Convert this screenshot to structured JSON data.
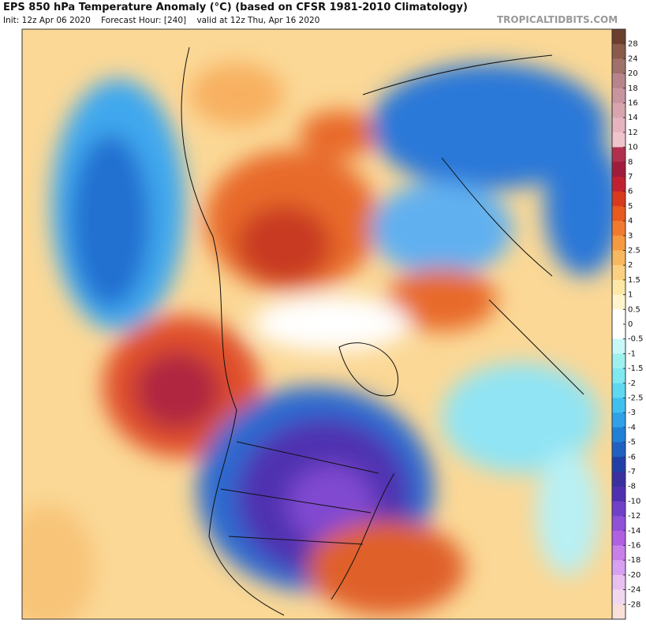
{
  "header": {
    "title": "EPS 850 hPa Temperature Anomaly (°C) (based on CFSR 1981-2010 Climatology)",
    "init": "Init: 12z Apr 06 2020",
    "forecast_hour": "Forecast Hour: [240]",
    "valid": "valid at 12z Thu, Apr 16 2020",
    "watermark": "TROPICALTIDBITS.COM"
  },
  "colorbar": {
    "ticks": [
      28,
      24,
      20,
      18,
      16,
      14,
      12,
      10,
      8,
      7,
      6,
      5,
      4,
      3,
      2.5,
      2,
      1.5,
      1,
      0.5,
      0,
      -0.5,
      -1,
      -1.5,
      -2,
      -2.5,
      -3,
      -4,
      -5,
      -6,
      -7,
      -8,
      -10,
      -12,
      -14,
      -16,
      -18,
      -20,
      -24,
      -28
    ],
    "colors": [
      "#6b3e2e",
      "#8a5a4a",
      "#a0706a",
      "#b8848c",
      "#c8949e",
      "#d8a4ae",
      "#e6b4be",
      "#f0c4cc",
      "#b0304e",
      "#a01c3c",
      "#c02030",
      "#d83a20",
      "#e85a20",
      "#f07a30",
      "#f59a40",
      "#f8b860",
      "#fbd080",
      "#fde8a8",
      "#fff4cc",
      "#ffffff",
      "#ffffff",
      "#c8f8f8",
      "#a0f0f0",
      "#80e8f0",
      "#60d8f0",
      "#40c0f0",
      "#30a0e8",
      "#2080d8",
      "#2060c0",
      "#2040a8",
      "#3a30a0",
      "#5030b0",
      "#7040c8",
      "#9050d8",
      "#b060e0",
      "#c880e8",
      "#d8a0f0",
      "#e8c0f0",
      "#f0d8f0",
      "#f8e0d8"
    ]
  }
}
